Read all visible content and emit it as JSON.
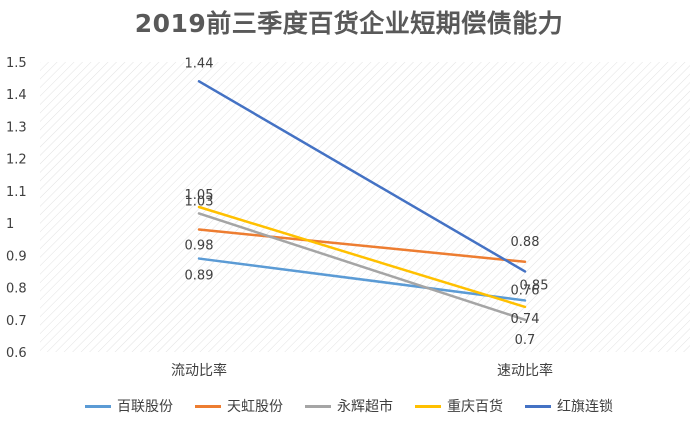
{
  "chart_data": {
    "type": "line",
    "title": "2019前三季度百货企业短期偿债能力",
    "categories": [
      "流动比率",
      "速动比率"
    ],
    "ylim": [
      0.6,
      1.5
    ],
    "yticks": [
      "1.5",
      "1.4",
      "1.3",
      "1.2",
      "1.1",
      "1",
      "0.9",
      "0.8",
      "0.7",
      "0.6"
    ],
    "grid": "diagonal-hatch",
    "legend_position": "bottom",
    "series": [
      {
        "name": "百联股份",
        "color": "#5B9BD5",
        "values": [
          0.89,
          0.76
        ],
        "labels": [
          "0.89",
          "0.76"
        ]
      },
      {
        "name": "天虹股份",
        "color": "#ED7D31",
        "values": [
          0.98,
          0.88
        ],
        "labels": [
          "0.98",
          "0.88"
        ]
      },
      {
        "name": "永辉超市",
        "color": "#A5A5A5",
        "values": [
          1.03,
          0.7
        ],
        "labels": [
          "1.03",
          "0.7"
        ]
      },
      {
        "name": "重庆百货",
        "color": "#FFC000",
        "values": [
          1.05,
          0.74
        ],
        "labels": [
          "1.05",
          "0.74"
        ]
      },
      {
        "name": "红旗连锁",
        "color": "#4472C4",
        "values": [
          1.44,
          0.85
        ],
        "labels": [
          "1.44",
          "0.85"
        ]
      }
    ]
  }
}
